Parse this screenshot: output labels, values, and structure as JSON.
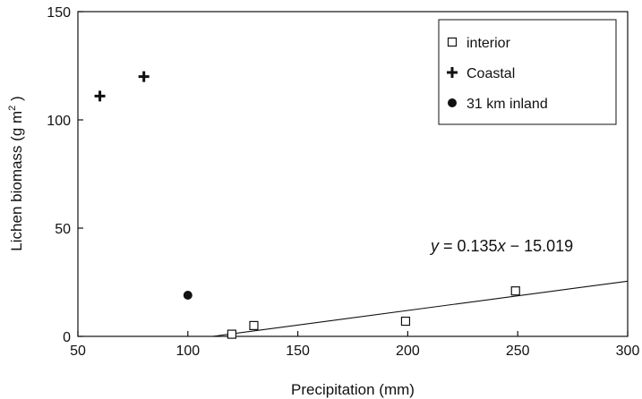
{
  "chart_data": {
    "type": "scatter",
    "title": "",
    "xlabel": "Precipitation (mm)",
    "ylabel": "Lichen biomass (g m",
    "ylabel_superscript": "2",
    "ylabel_suffix": ")",
    "xlim": [
      50,
      300
    ],
    "ylim": [
      0,
      150
    ],
    "x_ticks": [
      50,
      100,
      150,
      200,
      250,
      300
    ],
    "y_ticks": [
      0,
      50,
      100,
      150
    ],
    "grid": false,
    "legend_position": "top-right",
    "series": [
      {
        "name": "interior",
        "marker": "square-open",
        "color": "#111111",
        "points": [
          {
            "x": 120,
            "y": 1
          },
          {
            "x": 130,
            "y": 5
          },
          {
            "x": 199,
            "y": 7
          },
          {
            "x": 249,
            "y": 21
          }
        ]
      },
      {
        "name": "Coastal",
        "marker": "plus",
        "color": "#111111",
        "points": [
          {
            "x": 60,
            "y": 111
          },
          {
            "x": 80,
            "y": 120
          }
        ]
      },
      {
        "name": "31 km inland",
        "marker": "circle-filled",
        "color": "#111111",
        "points": [
          {
            "x": 100,
            "y": 19
          }
        ]
      }
    ],
    "trendline": {
      "slope": 0.135,
      "intercept": -15.019,
      "x_start": 111.3,
      "x_end": 300,
      "equation_parts": {
        "y_var": "y",
        "equals": " = 0.135",
        "x_var": "x",
        "rest": " − 15.019"
      }
    }
  }
}
